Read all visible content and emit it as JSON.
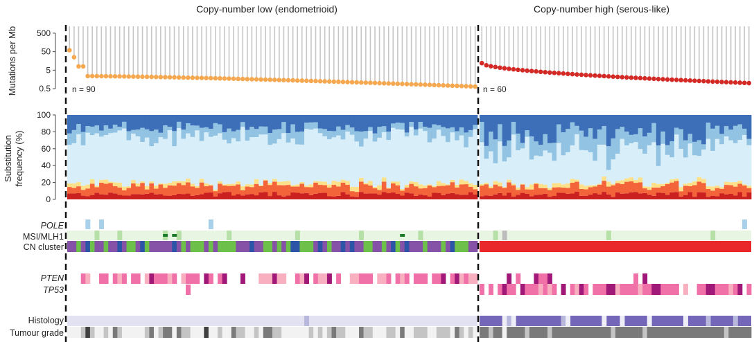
{
  "chart_data": {
    "type": "multi-panel",
    "groups": [
      {
        "title": "Copy-number low (endometrioid)",
        "n_label": "n = 90",
        "n": 90,
        "rate_start": 60,
        "rate_end": 0.65
      },
      {
        "title": "Copy-number high (serous-like)",
        "n_label": "n = 60",
        "n": 60,
        "rate_start": 12,
        "rate_end": 1.0
      }
    ],
    "mutation_panel": {
      "ylabel": "Mutations per Mb",
      "scale": "log",
      "yticks": [
        "500",
        "50",
        "5",
        "0.5"
      ],
      "ylim": [
        0.3,
        700
      ],
      "colors": {
        "low": "#f5a850",
        "high": "#d42a26"
      }
    },
    "substitution_panel": {
      "ylabel_line1": "Substitution",
      "ylabel_line2": "frequency (%)",
      "yticks": [
        "0",
        "20",
        "40",
        "60",
        "80",
        "100"
      ],
      "ylim": [
        0,
        100
      ],
      "components": [
        {
          "color": "#cb2020"
        },
        {
          "color": "#f4643a"
        },
        {
          "color": "#fde08a"
        },
        {
          "color": "#d8eef8"
        },
        {
          "color": "#92c3e2"
        },
        {
          "color": "#3c6fb8"
        }
      ]
    },
    "tracks": [
      {
        "label": "POLE",
        "italic": true
      },
      {
        "label": "MSI/MLH1",
        "italic": false
      },
      {
        "label": "CN cluster",
        "italic": false
      },
      {
        "label": "PTEN",
        "italic": true
      },
      {
        "label": "TP53",
        "italic": true
      },
      {
        "label": "Histology",
        "italic": false
      },
      {
        "label": "Tumour grade",
        "italic": false
      }
    ],
    "track_colors": {
      "pole": "#a8d0ea",
      "msi_bg": "#e8f5e2",
      "msi_mark": "#b6e0a8",
      "mlh1": "#1a7a2a",
      "cn": [
        "#6dc04a",
        "#8552a8",
        "#2c55a8"
      ],
      "cn_high": "#e8282a",
      "mut": [
        "#f070a8",
        "#f8b0c0",
        "#a01878"
      ],
      "histology_low": "#e2e2f2",
      "histology_high": "#7466b8",
      "histology_alt": "#b8b8dc",
      "grade": [
        "#f2f2f2",
        "#c4c4c4",
        "#7a7a7a",
        "#404040"
      ]
    }
  }
}
